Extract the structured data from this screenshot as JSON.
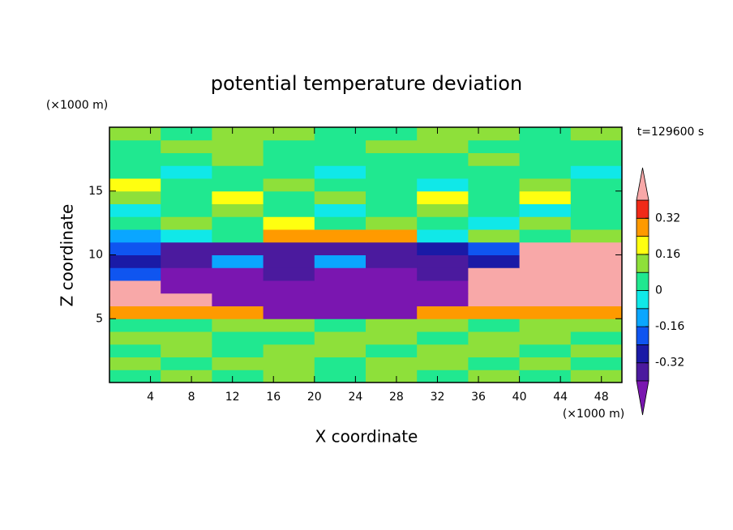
{
  "chart_data": {
    "type": "contour",
    "title": "potential temperature deviation",
    "x_label": "X coordinate",
    "y_label": "Z coordinate",
    "x_unit": "(×1000 m)",
    "y_unit": "(×1000 m)",
    "annotation": "t=129600 s",
    "xlim": [
      0,
      50
    ],
    "ylim": [
      0,
      20
    ],
    "xticks": [
      4,
      8,
      12,
      16,
      20,
      24,
      28,
      32,
      36,
      40,
      44,
      48
    ],
    "yticks": [
      5,
      10,
      15
    ],
    "x": [
      2.5,
      7.5,
      12.5,
      17.5,
      22.5,
      27.5,
      32.5,
      37.5,
      42.5,
      47.5
    ],
    "z": [
      0.5,
      1.5,
      2.5,
      3.5,
      4.5,
      5.5,
      6.5,
      7.5,
      8.5,
      9.5,
      10.5,
      11.5,
      12.5,
      13.5,
      14.5,
      15.5,
      16.5,
      17.5,
      18.5,
      19.5
    ],
    "values": [
      [
        0.05,
        0.1,
        0.05,
        0.1,
        0.05,
        0.1,
        0.05,
        0.1,
        0.05,
        0.1
      ],
      [
        0.1,
        0.05,
        0.1,
        0.1,
        0.05,
        0.1,
        0.1,
        0.05,
        0.1,
        0.05
      ],
      [
        0.05,
        0.1,
        0.05,
        0.1,
        0.1,
        0.05,
        0.1,
        0.1,
        0.05,
        0.1
      ],
      [
        0.1,
        0.1,
        0.05,
        0.05,
        0.1,
        0.1,
        0.05,
        0.1,
        0.1,
        0.05
      ],
      [
        0.05,
        0.05,
        0.1,
        0.1,
        0.05,
        0.1,
        0.1,
        0.05,
        0.1,
        0.1
      ],
      [
        0.28,
        0.28,
        0.28,
        -0.45,
        -0.45,
        -0.45,
        0.28,
        0.28,
        0.28,
        0.28
      ],
      [
        0.45,
        0.45,
        -0.45,
        -0.45,
        -0.45,
        -0.45,
        -0.45,
        0.45,
        0.45,
        0.45
      ],
      [
        0.45,
        -0.45,
        -0.45,
        -0.45,
        -0.45,
        -0.45,
        -0.45,
        0.45,
        0.45,
        0.45
      ],
      [
        -0.2,
        -0.45,
        -0.45,
        -0.35,
        -0.45,
        -0.45,
        -0.35,
        0.45,
        0.45,
        0.45
      ],
      [
        -0.3,
        -0.35,
        -0.1,
        -0.35,
        -0.1,
        -0.35,
        -0.35,
        -0.3,
        0.45,
        0.45
      ],
      [
        -0.2,
        -0.35,
        -0.35,
        -0.35,
        -0.35,
        -0.35,
        -0.3,
        -0.2,
        0.45,
        0.45
      ],
      [
        -0.1,
        -0.05,
        0.05,
        0.28,
        0.28,
        0.28,
        -0.05,
        0.1,
        0.05,
        0.1
      ],
      [
        0.05,
        0.1,
        0.05,
        0.2,
        0.05,
        0.1,
        0.05,
        -0.05,
        0.1,
        0.05
      ],
      [
        -0.05,
        0.05,
        0.1,
        0.05,
        -0.05,
        0.05,
        0.1,
        0.05,
        -0.05,
        0.05
      ],
      [
        0.1,
        0.05,
        0.2,
        0.05,
        0.1,
        0.05,
        0.2,
        0.05,
        0.2,
        0.05
      ],
      [
        0.2,
        0.05,
        0.05,
        0.1,
        0.05,
        0.05,
        -0.05,
        0.05,
        0.1,
        0.05
      ],
      [
        0.05,
        -0.05,
        0.05,
        0.05,
        -0.05,
        0.05,
        0.05,
        0.05,
        0.05,
        -0.05
      ],
      [
        0.05,
        0.05,
        0.1,
        0.05,
        0.05,
        0.05,
        0.05,
        0.1,
        0.05,
        0.05
      ],
      [
        0.05,
        0.1,
        0.1,
        0.05,
        0.05,
        0.1,
        0.1,
        0.05,
        0.05,
        0.05
      ],
      [
        0.1,
        0.05,
        0.1,
        0.1,
        0.05,
        0.05,
        0.1,
        0.1,
        0.05,
        0.1
      ]
    ],
    "levels": [
      -0.4,
      -0.32,
      -0.24,
      -0.16,
      -0.08,
      0,
      0.08,
      0.16,
      0.24,
      0.32,
      0.4
    ],
    "colors": [
      "#4b1a9e",
      "#1a1aa6",
      "#0f55f0",
      "#0aa6ff",
      "#10e8e8",
      "#20e890",
      "#8ee03a",
      "#ffff10",
      "#ff9a00",
      "#f02a18"
    ],
    "under_color": "#7a16b0",
    "over_color": "#f8a8a8",
    "colorbar_ticks": [
      -0.32,
      -0.16,
      0,
      0.16,
      0.32
    ]
  }
}
